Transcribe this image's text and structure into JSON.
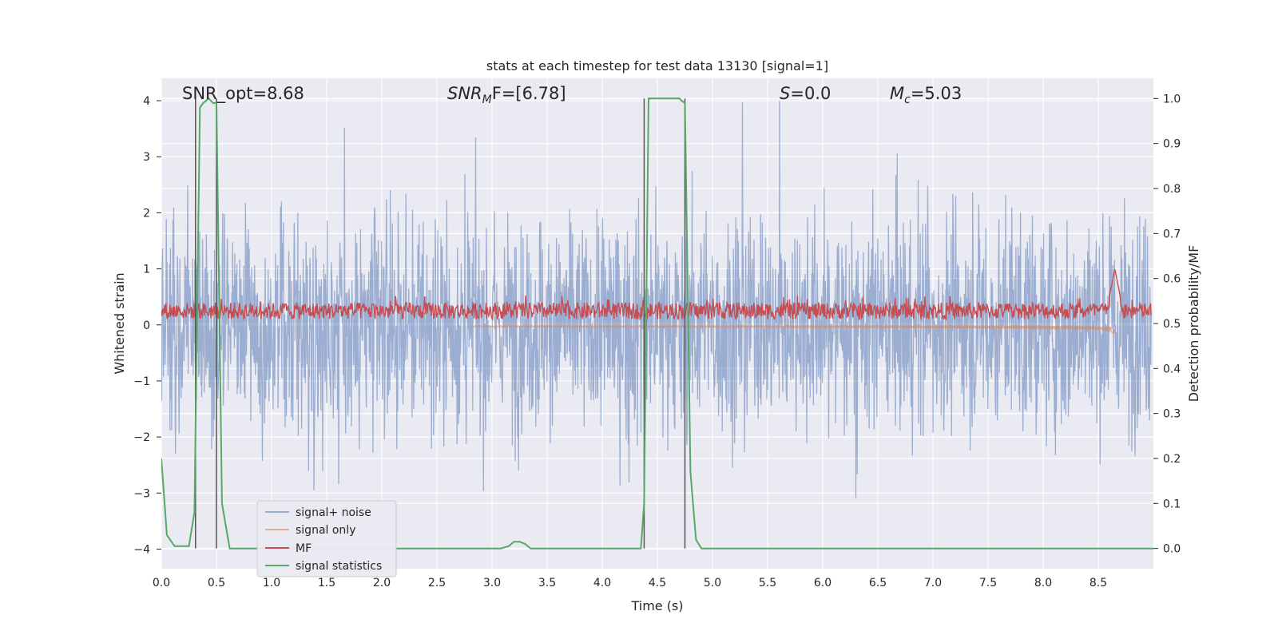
{
  "chart_data": {
    "type": "line",
    "title": "stats at each timestep for test data 13130 [signal=1]",
    "xlabel": "Time (s)",
    "ylabel_left": "Whitened strain",
    "ylabel_right": "Detection probability/MF",
    "xlim": [
      0.0,
      9.0
    ],
    "ylim_left": [
      -4.35,
      4.4
    ],
    "ylim_right": [
      -0.045,
      1.045
    ],
    "xticks": [
      "0.0",
      "0.5",
      "1.0",
      "1.5",
      "2.0",
      "2.5",
      "3.0",
      "3.5",
      "4.0",
      "4.5",
      "5.0",
      "5.5",
      "6.0",
      "6.5",
      "7.0",
      "7.5",
      "8.0",
      "8.5"
    ],
    "yticks_left": [
      "−4",
      "−3",
      "−2",
      "−1",
      "0",
      "1",
      "2",
      "3",
      "4"
    ],
    "yticks_right": [
      "0.0",
      "0.1",
      "0.2",
      "0.3",
      "0.4",
      "0.5",
      "0.6",
      "0.7",
      "0.8",
      "0.9",
      "1.0"
    ],
    "grid": true,
    "legend_position": "lower-left",
    "legend": [
      "signal+ noise",
      "signal only",
      "MF",
      "signal statistics"
    ],
    "annotations": {
      "snr_opt": "SNR_opt=8.68",
      "snr_mf_main": "SNR",
      "snr_mf_sub": "M",
      "snr_mf_rest": "F=[6.78]",
      "s_main": "S",
      "s_rest": "=0.0",
      "mc_main": "M",
      "mc_sub": "c",
      "mc_rest": "=5.03"
    },
    "series": [
      {
        "name": "signal+ noise",
        "color": "#4c72b0",
        "note": "whitened noise, amplitude approx ±1.5 with peaks to ±4.0"
      },
      {
        "name": "signal only",
        "color": "#dd8452",
        "note": "chirp signal growing to about −1.0 near 8.65 s"
      },
      {
        "name": "MF",
        "color": "#c44e52",
        "note": "matched filter output around 0.1–0.5, spike to 1.0 near 8.65 s"
      },
      {
        "name": "signal statistics",
        "color": "#55a868",
        "x": [
          0.0,
          0.05,
          0.12,
          0.2,
          0.25,
          0.3,
          0.35,
          0.38,
          0.43,
          0.47,
          0.5,
          0.55,
          0.62,
          0.7,
          3.0,
          3.08,
          3.15,
          3.2,
          3.25,
          3.3,
          3.35,
          3.4,
          4.3,
          4.35,
          4.38,
          4.42,
          4.45,
          4.55,
          4.6,
          4.7,
          4.72,
          4.75,
          4.8,
          4.85,
          4.9,
          5.0,
          9.0
        ],
        "y": [
          0.2,
          0.03,
          0.005,
          0.005,
          0.005,
          0.08,
          0.98,
          0.99,
          1.0,
          0.99,
          0.99,
          0.1,
          0.0,
          0.0,
          0.0,
          0.0,
          0.005,
          0.015,
          0.015,
          0.01,
          0.0,
          0.0,
          0.0,
          0.0,
          0.1,
          1.0,
          1.0,
          1.0,
          1.0,
          1.0,
          0.995,
          0.99,
          0.17,
          0.02,
          0.0,
          0.0,
          0.0
        ]
      }
    ],
    "vertical_lines_x": [
      0.31,
      0.5,
      4.38,
      4.75
    ]
  }
}
